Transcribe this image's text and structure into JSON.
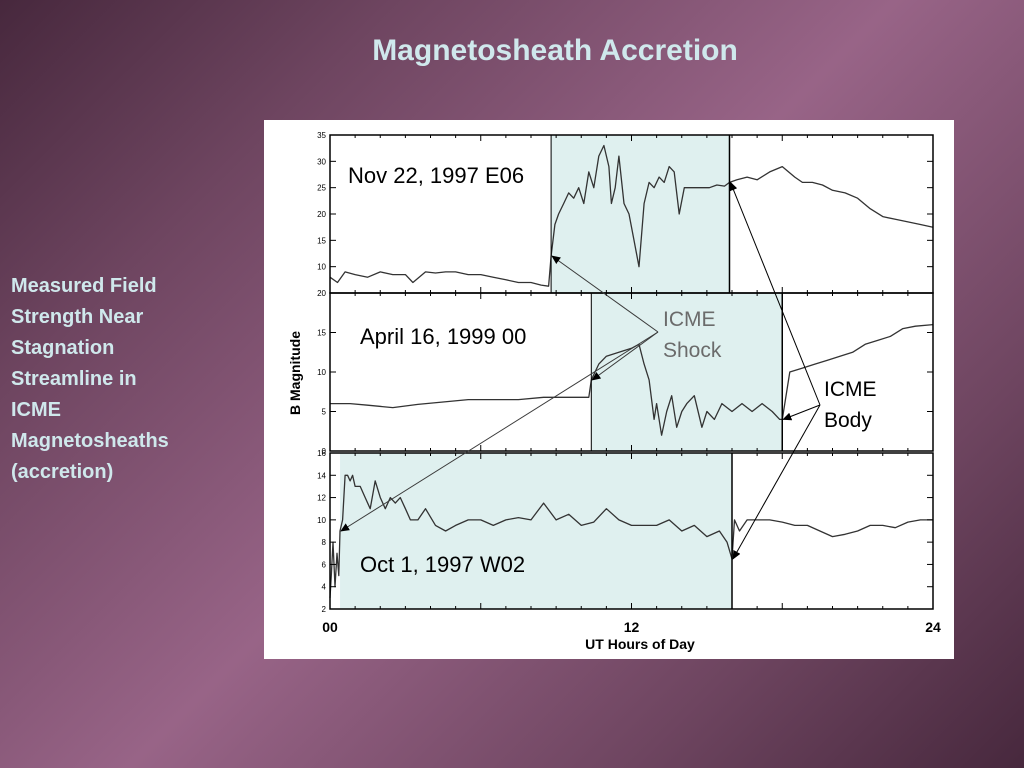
{
  "slide": {
    "title": "Magnetosheath Accretion",
    "side_text": "Measured Field\nStrength Near\nStagnation\nStreamline in\nICME\nMagnetosheaths\n(accretion)"
  },
  "colors": {
    "background": "#7e5070",
    "title_text": "#cfe8ec",
    "sheath_shade": "#dff0ef",
    "trace": "#333333"
  },
  "chart_data": {
    "type": "line",
    "xlabel": "UT Hours of Day",
    "ylabel": "B Magnitude",
    "xlim": [
      0,
      24
    ],
    "x_tick_labels": [
      {
        "x": 0,
        "label": "00"
      },
      {
        "x": 12,
        "label": "12"
      },
      {
        "x": 24,
        "label": "24"
      }
    ],
    "panels": [
      {
        "label": "Nov 22, 1997   E06",
        "ylim": [
          5,
          35
        ],
        "yticks": [
          10,
          15,
          20,
          25,
          30,
          35
        ],
        "shaded_region": [
          8.8,
          15.9
        ],
        "shock_time": 8.8,
        "body_time": 15.9,
        "series": {
          "x": [
            0,
            0.3,
            0.6,
            1.0,
            1.5,
            2.0,
            2.5,
            3.0,
            3.3,
            3.8,
            4.2,
            4.6,
            5.0,
            5.5,
            6.0,
            6.5,
            7.0,
            7.5,
            8.0,
            8.4,
            8.7,
            8.8,
            8.95,
            9.1,
            9.3,
            9.5,
            9.7,
            9.9,
            10.1,
            10.3,
            10.5,
            10.7,
            10.9,
            11.1,
            11.2,
            11.35,
            11.5,
            11.7,
            11.9,
            12.1,
            12.3,
            12.5,
            12.7,
            12.9,
            13.1,
            13.3,
            13.5,
            13.7,
            13.9,
            14.1,
            14.3,
            14.5,
            14.7,
            14.9,
            15.1,
            15.4,
            15.7,
            15.9,
            16.2,
            16.6,
            17.0,
            17.5,
            18.0,
            18.5,
            18.8,
            19.2,
            19.6,
            20.0,
            20.5,
            21.0,
            21.5,
            22.0,
            22.5,
            23.0,
            23.5,
            24.0
          ],
          "y": [
            8,
            7,
            9,
            8.5,
            8,
            9,
            8.5,
            8.5,
            7,
            9,
            8.8,
            9,
            9,
            8.5,
            8.5,
            8,
            7.5,
            7,
            7,
            6.5,
            6.3,
            12,
            18,
            20,
            22,
            24,
            23,
            25,
            22,
            28,
            25,
            31,
            33,
            29,
            22,
            25,
            31,
            22,
            20,
            15,
            10,
            22,
            26,
            25,
            27,
            26,
            29,
            28,
            20,
            25,
            25,
            25,
            25,
            25,
            25,
            25.5,
            25.3,
            26,
            26.5,
            27,
            26.5,
            28,
            29,
            27,
            26,
            26,
            25.5,
            24.5,
            24,
            23,
            21,
            19.5,
            19,
            18.5,
            18,
            17.5
          ]
        }
      },
      {
        "label": "April 16, 1999   00",
        "ylim": [
          0,
          20
        ],
        "yticks": [
          0,
          5,
          10,
          15,
          20
        ],
        "shaded_region": [
          10.4,
          18.0
        ],
        "shock_time": 10.4,
        "body_time": 18.0,
        "series": {
          "x": [
            0,
            0.8,
            1.5,
            2.5,
            3.5,
            4.5,
            5.5,
            6.5,
            7.5,
            8.5,
            9.5,
            10.3,
            10.4,
            10.7,
            11.0,
            11.5,
            12.0,
            12.3,
            12.5,
            12.7,
            12.9,
            13.0,
            13.2,
            13.4,
            13.6,
            13.8,
            14.0,
            14.2,
            14.5,
            14.8,
            15.0,
            15.3,
            15.6,
            16.0,
            16.4,
            16.8,
            17.2,
            17.6,
            17.9,
            18.0,
            18.3,
            18.8,
            19.3,
            19.8,
            20.3,
            20.8,
            21.3,
            21.8,
            22.3,
            22.8,
            23.3,
            24.0
          ],
          "y": [
            6,
            6,
            5.8,
            5.5,
            5.9,
            6.2,
            6.5,
            6.5,
            6.5,
            6.8,
            6.8,
            6.8,
            9,
            11,
            12,
            12.5,
            13,
            13.5,
            11,
            9,
            4,
            6,
            2,
            5,
            7,
            3,
            5,
            6,
            7,
            3,
            5,
            4,
            6,
            5,
            6,
            5,
            6,
            5,
            4,
            4,
            10,
            10.5,
            11,
            11.5,
            12,
            12.5,
            13.5,
            14,
            14.5,
            15.5,
            15.8,
            16
          ]
        }
      },
      {
        "label": "Oct 1, 1997   W02",
        "ylim": [
          2,
          16
        ],
        "yticks": [
          2,
          4,
          6,
          8,
          10,
          12,
          14,
          16
        ],
        "shaded_region": [
          0.4,
          16.0
        ],
        "shock_time": 0.4,
        "body_time": 16.0,
        "series": {
          "x": [
            0,
            0.05,
            0.12,
            0.2,
            0.28,
            0.35,
            0.4,
            0.5,
            0.6,
            0.7,
            0.8,
            0.9,
            1.0,
            1.2,
            1.4,
            1.6,
            1.8,
            2.0,
            2.2,
            2.4,
            2.6,
            2.8,
            3.0,
            3.2,
            3.5,
            3.8,
            4.2,
            4.6,
            5.0,
            5.5,
            6.0,
            6.5,
            7.0,
            7.5,
            8.0,
            8.5,
            9.0,
            9.5,
            10.0,
            10.5,
            11.0,
            11.5,
            12.0,
            12.5,
            13.0,
            13.5,
            14.0,
            14.5,
            15.0,
            15.5,
            15.8,
            16.0,
            16.1,
            16.3,
            16.6,
            17.0,
            17.5,
            18.0,
            18.5,
            19.0,
            19.5,
            20.0,
            20.5,
            21.0,
            21.5,
            22.0,
            22.5,
            23.0,
            23.5,
            24.0
          ],
          "y": [
            3,
            5,
            8,
            4,
            7,
            5,
            9,
            10,
            14,
            14,
            13.5,
            14,
            13,
            13,
            12,
            11,
            13.5,
            12,
            11,
            12,
            11.5,
            12,
            11,
            10,
            10,
            11,
            9.5,
            9,
            9.5,
            10,
            10,
            9.5,
            10,
            10.2,
            10,
            11.5,
            10,
            10.5,
            9.5,
            9.8,
            11,
            10,
            9.5,
            9.5,
            9.5,
            10,
            9,
            9.5,
            8.5,
            9,
            8,
            6.5,
            10,
            9,
            10,
            10,
            10,
            9.8,
            9.5,
            9.5,
            9,
            8.5,
            8.7,
            9,
            9.5,
            9.5,
            9.3,
            9.8,
            10,
            10
          ]
        }
      }
    ],
    "annotations": [
      {
        "label": "ICME\nShock",
        "kind": "shock"
      },
      {
        "label": "ICME\nBody",
        "kind": "body"
      }
    ]
  }
}
